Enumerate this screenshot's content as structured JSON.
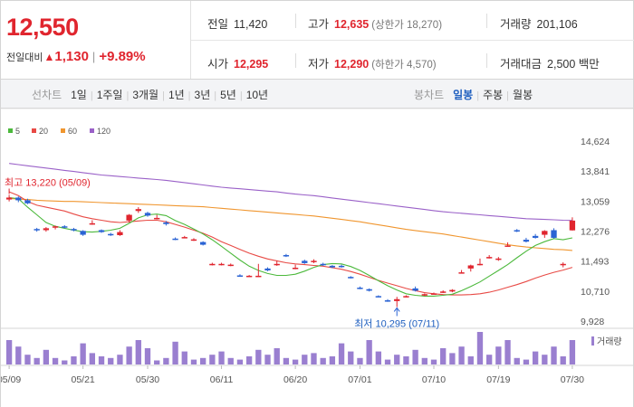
{
  "summary": {
    "price": "12,550",
    "change_label": "전일대비",
    "change_arrow": "▲",
    "change_amount": "1,130",
    "change_sep": "|",
    "change_pct": "+9.89%",
    "prev_close": {
      "label": "전일",
      "value": "11,420"
    },
    "high": {
      "label": "고가",
      "value": "12,635",
      "limit": "(상한가 18,270)"
    },
    "volume": {
      "label": "거래량",
      "value": "201,106"
    },
    "open": {
      "label": "시가",
      "value": "12,295"
    },
    "low": {
      "label": "저가",
      "value": "12,290",
      "limit": "(하한가 4,570)"
    },
    "amount": {
      "label": "거래대금",
      "value": "2,500 백만"
    }
  },
  "tabs": {
    "line_label": "선차트",
    "line_items": [
      "1일",
      "1주일",
      "3개월",
      "1년",
      "3년",
      "5년",
      "10년"
    ],
    "candle_label": "봉차트",
    "candle_items": [
      "일봉",
      "주봉",
      "월봉"
    ],
    "candle_active": 0
  },
  "colors": {
    "up": "#e0252e",
    "down": "#2a63d4",
    "ma5": "#4cb93c",
    "ma20": "#e84a45",
    "ma60": "#f0962f",
    "ma120": "#9a61c8",
    "volume": "#9a7fd0"
  },
  "chart_data": {
    "type": "candlestick",
    "legend": [
      {
        "name": "5",
        "color": "#4cb93c"
      },
      {
        "name": "20",
        "color": "#e84a45"
      },
      {
        "name": "60",
        "color": "#f0962f"
      },
      {
        "name": "120",
        "color": "#9a61c8"
      }
    ],
    "ylim": [
      9928,
      14624
    ],
    "y_ticks": [
      "14,624",
      "13,841",
      "13,059",
      "12,276",
      "11,493",
      "10,710",
      "9,928"
    ],
    "x_ticks": [
      "05/09",
      "05/21",
      "05/30",
      "06/11",
      "06/20",
      "07/01",
      "07/10",
      "07/19",
      "07/30"
    ],
    "high_annotation": "최고 13,220 (05/09)",
    "low_annotation": "최저 10,295 (07/11)",
    "volume_label": "거래량",
    "candles": [
      {
        "o": 13100,
        "h": 13220,
        "l": 13050,
        "c": 13150
      },
      {
        "o": 13150,
        "h": 13180,
        "l": 13030,
        "c": 13080
      },
      {
        "o": 13080,
        "h": 13120,
        "l": 12980,
        "c": 13000
      },
      {
        "o": 12330,
        "h": 12360,
        "l": 12260,
        "c": 12300
      },
      {
        "o": 12300,
        "h": 12380,
        "l": 12260,
        "c": 12350
      },
      {
        "o": 12380,
        "h": 12420,
        "l": 12320,
        "c": 12400
      },
      {
        "o": 12400,
        "h": 12430,
        "l": 12350,
        "c": 12380
      },
      {
        "o": 12330,
        "h": 12360,
        "l": 12270,
        "c": 12300
      },
      {
        "o": 12280,
        "h": 12300,
        "l": 12150,
        "c": 12180
      },
      {
        "o": 12480,
        "h": 12560,
        "l": 12440,
        "c": 12480
      },
      {
        "o": 12300,
        "h": 12320,
        "l": 12230,
        "c": 12250
      },
      {
        "o": 12200,
        "h": 12230,
        "l": 12150,
        "c": 12180
      },
      {
        "o": 12170,
        "h": 12300,
        "l": 12150,
        "c": 12250
      },
      {
        "o": 12550,
        "h": 12720,
        "l": 12500,
        "c": 12700
      },
      {
        "o": 12800,
        "h": 12900,
        "l": 12750,
        "c": 12850
      },
      {
        "o": 12750,
        "h": 12780,
        "l": 12650,
        "c": 12680
      },
      {
        "o": 12620,
        "h": 12700,
        "l": 12580,
        "c": 12620
      },
      {
        "o": 12500,
        "h": 12540,
        "l": 12420,
        "c": 12460
      },
      {
        "o": 12080,
        "h": 12110,
        "l": 12040,
        "c": 12060
      },
      {
        "o": 12120,
        "h": 12150,
        "l": 12090,
        "c": 12120
      },
      {
        "o": 12050,
        "h": 12090,
        "l": 12020,
        "c": 12060
      },
      {
        "o": 11990,
        "h": 12010,
        "l": 11900,
        "c": 11920
      },
      {
        "o": 11420,
        "h": 11450,
        "l": 11380,
        "c": 11420
      },
      {
        "o": 11400,
        "h": 11450,
        "l": 11380,
        "c": 11420
      },
      {
        "o": 11400,
        "h": 11430,
        "l": 11360,
        "c": 11400
      },
      {
        "o": 11120,
        "h": 11150,
        "l": 11090,
        "c": 11110
      },
      {
        "o": 11100,
        "h": 11130,
        "l": 11080,
        "c": 11110
      },
      {
        "o": 11100,
        "h": 11420,
        "l": 11080,
        "c": 11110
      },
      {
        "o": 11300,
        "h": 11330,
        "l": 11230,
        "c": 11250
      },
      {
        "o": 11400,
        "h": 11500,
        "l": 11370,
        "c": 11420
      },
      {
        "o": 11650,
        "h": 11680,
        "l": 11600,
        "c": 11620
      },
      {
        "o": 11300,
        "h": 11400,
        "l": 11280,
        "c": 11320
      },
      {
        "o": 11500,
        "h": 11530,
        "l": 11420,
        "c": 11440
      },
      {
        "o": 11480,
        "h": 11540,
        "l": 11440,
        "c": 11500
      },
      {
        "o": 11420,
        "h": 11450,
        "l": 11370,
        "c": 11400
      },
      {
        "o": 11370,
        "h": 11390,
        "l": 11310,
        "c": 11330
      },
      {
        "o": 11370,
        "h": 11400,
        "l": 11320,
        "c": 11360
      },
      {
        "o": 11080,
        "h": 11100,
        "l": 11040,
        "c": 11060
      },
      {
        "o": 10800,
        "h": 10830,
        "l": 10760,
        "c": 10780
      },
      {
        "o": 10760,
        "h": 10780,
        "l": 10700,
        "c": 10720
      },
      {
        "o": 10580,
        "h": 10600,
        "l": 10550,
        "c": 10570
      },
      {
        "o": 10470,
        "h": 10500,
        "l": 10430,
        "c": 10450
      },
      {
        "o": 10450,
        "h": 10560,
        "l": 10295,
        "c": 10500
      },
      {
        "o": 10580,
        "h": 10600,
        "l": 10550,
        "c": 10580
      },
      {
        "o": 10780,
        "h": 10830,
        "l": 10700,
        "c": 10720
      },
      {
        "o": 10600,
        "h": 10650,
        "l": 10580,
        "c": 10630
      },
      {
        "o": 10640,
        "h": 10670,
        "l": 10620,
        "c": 10650
      },
      {
        "o": 10700,
        "h": 10730,
        "l": 10660,
        "c": 10700
      },
      {
        "o": 10700,
        "h": 10760,
        "l": 10680,
        "c": 10740
      },
      {
        "o": 11200,
        "h": 11260,
        "l": 11180,
        "c": 11200
      },
      {
        "o": 11300,
        "h": 11400,
        "l": 11220,
        "c": 11380
      },
      {
        "o": 11400,
        "h": 11560,
        "l": 11380,
        "c": 11420
      },
      {
        "o": 11600,
        "h": 11650,
        "l": 11560,
        "c": 11600
      },
      {
        "o": 11550,
        "h": 11600,
        "l": 11500,
        "c": 11560
      },
      {
        "o": 11900,
        "h": 11980,
        "l": 11880,
        "c": 11900
      },
      {
        "o": 12300,
        "h": 12330,
        "l": 12250,
        "c": 12280
      },
      {
        "o": 12050,
        "h": 12100,
        "l": 11980,
        "c": 12000
      },
      {
        "o": 12150,
        "h": 12200,
        "l": 12080,
        "c": 12100
      },
      {
        "o": 12180,
        "h": 12300,
        "l": 12100,
        "c": 12280
      },
      {
        "o": 12300,
        "h": 12350,
        "l": 12080,
        "c": 12100
      },
      {
        "o": 11400,
        "h": 11460,
        "l": 11330,
        "c": 11420
      },
      {
        "o": 12295,
        "h": 12635,
        "l": 12290,
        "c": 12550
      }
    ],
    "ma5": [
      13150,
      13120,
      12900,
      12700,
      12500,
      12400,
      12350,
      12300,
      12260,
      12250,
      12270,
      12300,
      12350,
      12480,
      12620,
      12700,
      12720,
      12680,
      12550,
      12450,
      12330,
      12200,
      12050,
      11880,
      11700,
      11520,
      11360,
      11250,
      11170,
      11120,
      11120,
      11150,
      11230,
      11330,
      11400,
      11430,
      11420,
      11350,
      11250,
      11120,
      10980,
      10850,
      10740,
      10640,
      10600,
      10580,
      10580,
      10600,
      10630,
      10720,
      10830,
      10950,
      11100,
      11250,
      11400,
      11580,
      11750,
      11900,
      12000,
      12080,
      12050,
      12100
    ],
    "ma20": [
      13300,
      13200,
      13050,
      12950,
      12900,
      12850,
      12800,
      12720,
      12650,
      12600,
      12560,
      12520,
      12500,
      12520,
      12540,
      12560,
      12560,
      12520,
      12450,
      12380,
      12300,
      12220,
      12120,
      12000,
      11900,
      11800,
      11700,
      11620,
      11550,
      11500,
      11450,
      11420,
      11400,
      11380,
      11360,
      11320,
      11280,
      11220,
      11150,
      11070,
      10990,
      10920,
      10850,
      10780,
      10720,
      10670,
      10640,
      10620,
      10610,
      10610,
      10620,
      10640,
      10680,
      10740,
      10810,
      10880,
      10960,
      11050,
      11130,
      11200,
      11260,
      11330
    ],
    "ma60": [
      13130,
      13110,
      13100,
      13080,
      13070,
      13060,
      13050,
      13050,
      13040,
      13030,
      13020,
      13010,
      13000,
      12990,
      12980,
      12970,
      12960,
      12950,
      12940,
      12930,
      12920,
      12910,
      12890,
      12870,
      12850,
      12830,
      12810,
      12790,
      12770,
      12750,
      12730,
      12710,
      12690,
      12670,
      12640,
      12610,
      12580,
      12550,
      12520,
      12480,
      12440,
      12400,
      12360,
      12320,
      12290,
      12260,
      12230,
      12200,
      12160,
      12120,
      12080,
      12040,
      12000,
      11960,
      11920,
      11890,
      11860,
      11840,
      11820,
      11800,
      11790,
      11770
    ],
    "ma120": [
      14040,
      14010,
      13980,
      13950,
      13920,
      13890,
      13860,
      13830,
      13800,
      13770,
      13740,
      13720,
      13700,
      13680,
      13660,
      13640,
      13620,
      13600,
      13570,
      13540,
      13510,
      13480,
      13450,
      13420,
      13400,
      13380,
      13360,
      13340,
      13320,
      13300,
      13270,
      13240,
      13220,
      13200,
      13170,
      13140,
      13110,
      13080,
      13050,
      13020,
      12990,
      12960,
      12930,
      12900,
      12870,
      12840,
      12810,
      12780,
      12760,
      12740,
      12720,
      12700,
      12680,
      12660,
      12640,
      12620,
      12600,
      12590,
      12580,
      12570,
      12560,
      12555
    ],
    "volume": [
      30,
      22,
      12,
      8,
      18,
      8,
      5,
      10,
      26,
      14,
      10,
      8,
      12,
      22,
      30,
      20,
      5,
      8,
      28,
      16,
      6,
      8,
      12,
      16,
      8,
      6,
      10,
      18,
      12,
      20,
      8,
      6,
      12,
      14,
      8,
      10,
      26,
      16,
      8,
      30,
      16,
      6,
      12,
      10,
      18,
      8,
      6,
      20,
      14,
      22,
      10,
      40,
      12,
      22,
      30,
      8,
      6,
      16,
      12,
      22,
      10,
      30
    ]
  }
}
